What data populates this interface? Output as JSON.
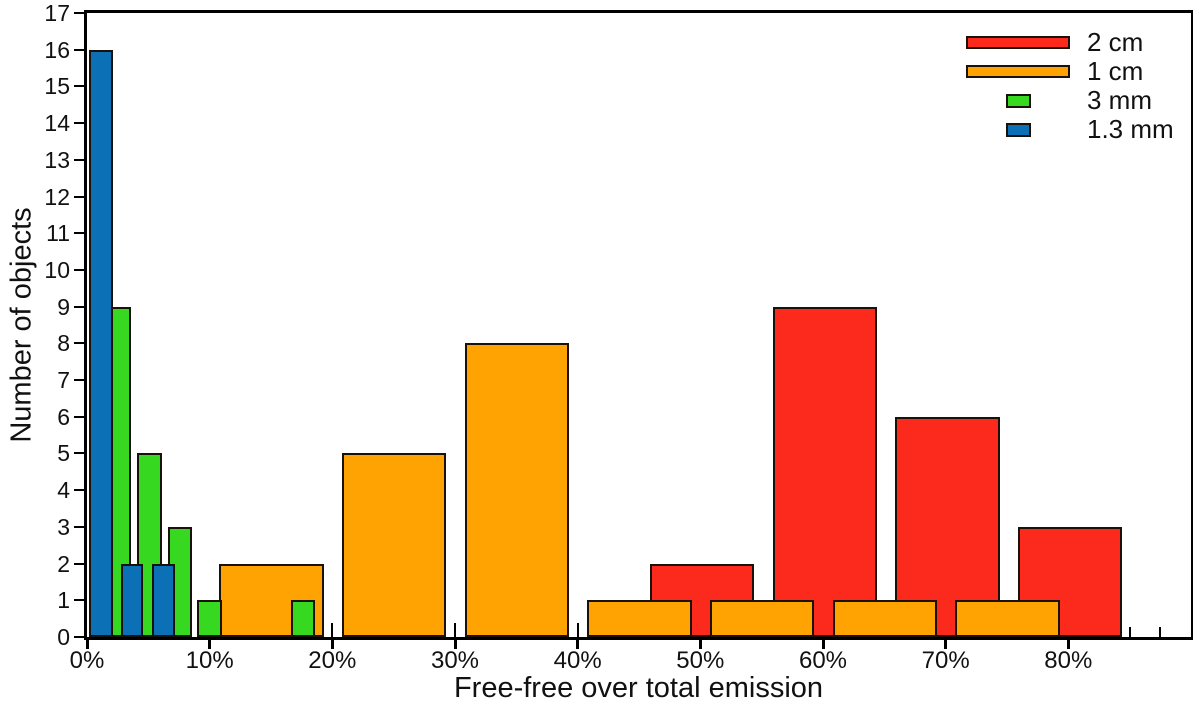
{
  "chart_data": {
    "type": "bar",
    "subtype": "overlaid-histogram",
    "title": "",
    "xlabel": "Free-free over total emission",
    "ylabel": "Number of objects",
    "xlim": [
      0,
      90
    ],
    "ylim": [
      0,
      17
    ],
    "x_unit": "percent",
    "grid": false,
    "legend_position": "top-right",
    "x_major_ticks": [
      0,
      10,
      20,
      30,
      40,
      50,
      60,
      70,
      80
    ],
    "x_major_tick_labels": [
      "0%",
      "10%",
      "20%",
      "30%",
      "40%",
      "50%",
      "60%",
      "70%",
      "80%"
    ],
    "x_minor_tick_step": 2.5,
    "y_ticks": [
      0,
      1,
      2,
      3,
      4,
      5,
      6,
      7,
      8,
      9,
      10,
      11,
      12,
      13,
      14,
      15,
      16,
      17
    ],
    "y_tick_labels": [
      "0",
      "1",
      "2",
      "3",
      "4",
      "5",
      "6",
      "7",
      "8",
      "9",
      "10",
      "11",
      "12",
      "13",
      "14",
      "15",
      "16",
      "17"
    ],
    "edge_color": "#1a1208",
    "draw_order_back_to_front": [
      "2 cm",
      "1 cm",
      "3 mm",
      "1.3 mm"
    ],
    "series": [
      {
        "name": "2 cm",
        "color": "#fb2a1d",
        "swatch": "wide",
        "bars": [
          {
            "from_pct": 45.9,
            "to_pct": 54.4,
            "count": 2
          },
          {
            "from_pct": 55.9,
            "to_pct": 64.4,
            "count": 9
          },
          {
            "from_pct": 65.9,
            "to_pct": 74.4,
            "count": 6
          },
          {
            "from_pct": 75.9,
            "to_pct": 84.4,
            "count": 3
          }
        ]
      },
      {
        "name": "1 cm",
        "color": "#ffa303",
        "swatch": "wide",
        "bars": [
          {
            "from_pct": 10.8,
            "to_pct": 19.3,
            "count": 2
          },
          {
            "from_pct": 20.8,
            "to_pct": 29.3,
            "count": 5
          },
          {
            "from_pct": 30.8,
            "to_pct": 39.3,
            "count": 8
          },
          {
            "from_pct": 40.8,
            "to_pct": 49.3,
            "count": 1
          },
          {
            "from_pct": 50.8,
            "to_pct": 59.3,
            "count": 1
          },
          {
            "from_pct": 60.8,
            "to_pct": 69.3,
            "count": 1
          },
          {
            "from_pct": 70.8,
            "to_pct": 79.3,
            "count": 1
          }
        ]
      },
      {
        "name": "3 mm",
        "color": "#36d920",
        "swatch": "small",
        "bars": [
          {
            "from_pct": 1.6,
            "to_pct": 3.6,
            "count": 9
          },
          {
            "from_pct": 4.1,
            "to_pct": 6.1,
            "count": 5
          },
          {
            "from_pct": 6.6,
            "to_pct": 8.6,
            "count": 3
          },
          {
            "from_pct": 9.0,
            "to_pct": 11.0,
            "count": 1
          },
          {
            "from_pct": 16.6,
            "to_pct": 18.6,
            "count": 1
          }
        ]
      },
      {
        "name": "1.3 mm",
        "color": "#0b70b5",
        "swatch": "small",
        "bars": [
          {
            "from_pct": 0.2,
            "to_pct": 2.1,
            "count": 16
          },
          {
            "from_pct": 2.8,
            "to_pct": 4.6,
            "count": 2
          },
          {
            "from_pct": 5.3,
            "to_pct": 7.2,
            "count": 2
          }
        ]
      }
    ]
  }
}
